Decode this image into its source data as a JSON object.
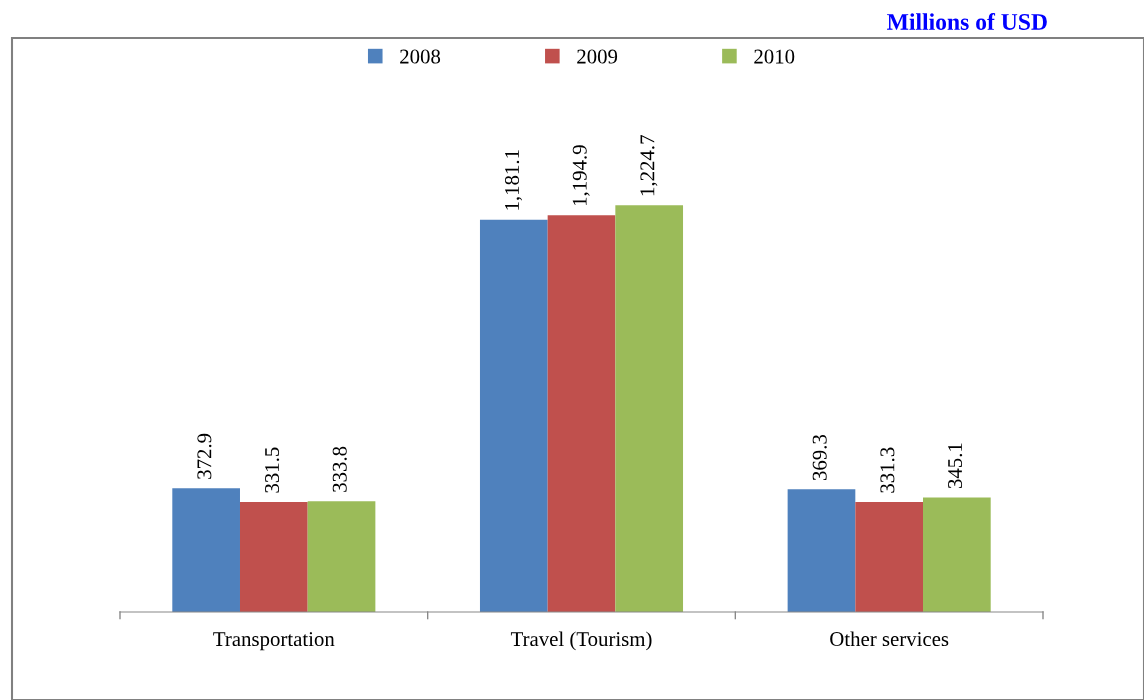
{
  "chart_data": {
    "type": "bar",
    "subtitle": "Millions of USD",
    "categories": [
      "Transportation",
      "Travel (Tourism)",
      "Other services"
    ],
    "series": [
      {
        "name": "2008",
        "color": "#4f81bd",
        "values": [
          372.9,
          1181.1,
          369.3
        ],
        "value_labels": [
          "372.9",
          "1,181.1",
          "369.3"
        ]
      },
      {
        "name": "2009",
        "color": "#c0504d",
        "values": [
          331.5,
          1194.9,
          331.3
        ],
        "value_labels": [
          "331.5",
          "1,194.9",
          "331.3"
        ]
      },
      {
        "name": "2010",
        "color": "#9bbb59",
        "values": [
          333.8,
          1224.7,
          345.1
        ],
        "value_labels": [
          "333.8",
          "1,224.7",
          "345.1"
        ]
      }
    ],
    "legend": "top",
    "grid": false,
    "tick_labels": "x"
  }
}
